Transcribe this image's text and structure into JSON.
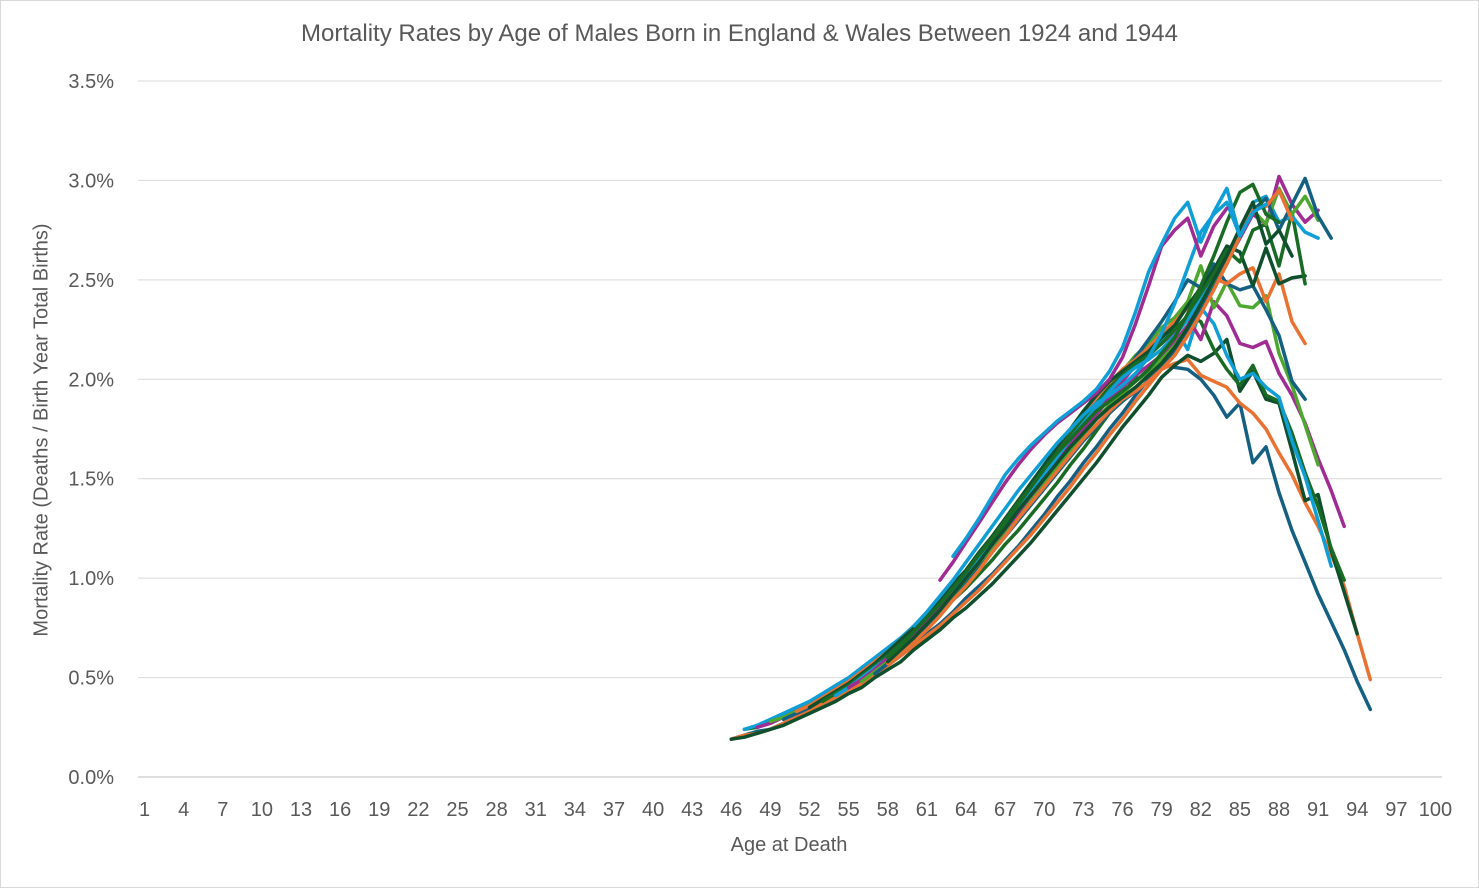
{
  "chart_data": {
    "type": "line",
    "title": "Mortality Rates by Age of Males Born in England & Wales Between 1924 and 1944",
    "xlabel": "Age at Death",
    "ylabel": "Mortality Rate (Deaths / Birth Year Total Births)",
    "x_categories_start": 1,
    "x_categories_end": 100,
    "x_tick_labels": [
      "1",
      "4",
      "7",
      "10",
      "13",
      "16",
      "19",
      "22",
      "25",
      "28",
      "31",
      "34",
      "37",
      "40",
      "43",
      "46",
      "49",
      "52",
      "55",
      "58",
      "61",
      "64",
      "67",
      "70",
      "73",
      "76",
      "79",
      "82",
      "85",
      "88",
      "91",
      "94",
      "97",
      "100"
    ],
    "y_tick_labels": [
      "0.0%",
      "0.5%",
      "1.0%",
      "1.5%",
      "2.0%",
      "2.5%",
      "3.0%",
      "3.5%"
    ],
    "ylim": [
      0,
      0.035
    ],
    "grid": true,
    "legend": "none",
    "series": [
      {
        "start": 46,
        "color": "#156082",
        "values": [
          0.0019,
          0.0021,
          0.0023,
          0.0024,
          0.0027,
          0.003,
          0.0034,
          0.0037,
          0.004,
          0.0044,
          0.0048,
          0.0052,
          0.0058,
          0.0062,
          0.0068,
          0.0072,
          0.0077,
          0.0083,
          0.009,
          0.0096,
          0.0102,
          0.0109,
          0.0116,
          0.0124,
          0.0132,
          0.0141,
          0.0149,
          0.0158,
          0.0166,
          0.0175,
          0.0183,
          0.0192,
          0.02,
          0.0208,
          0.0206,
          0.0205,
          0.02,
          0.0192,
          0.0181,
          0.0188,
          0.0158,
          0.0166,
          0.0143,
          0.0124,
          0.0108,
          0.0092,
          0.0078,
          0.0064,
          0.0048,
          0.0034
        ]
      },
      {
        "start": 46,
        "color": "#E97132",
        "values": [
          0.0019,
          0.0021,
          0.0022,
          0.0024,
          0.0027,
          0.003,
          0.0033,
          0.0037,
          0.004,
          0.0043,
          0.0047,
          0.0051,
          0.0056,
          0.0061,
          0.0066,
          0.0071,
          0.0076,
          0.0082,
          0.0088,
          0.0094,
          0.0101,
          0.0108,
          0.0115,
          0.0122,
          0.013,
          0.0138,
          0.0146,
          0.0155,
          0.0163,
          0.0172,
          0.018,
          0.0189,
          0.0197,
          0.0205,
          0.0208,
          0.021,
          0.0202,
          0.0199,
          0.0196,
          0.0188,
          0.0183,
          0.0175,
          0.0163,
          0.0152,
          0.0138,
          0.0126,
          0.0112,
          0.0096,
          0.0072,
          0.0049
        ]
      },
      {
        "start": 46,
        "color": "#0F4F2E",
        "values": [
          0.0019,
          0.002,
          0.0022,
          0.0024,
          0.0026,
          0.0029,
          0.0032,
          0.0035,
          0.0038,
          0.0042,
          0.0045,
          0.005,
          0.0054,
          0.0058,
          0.0064,
          0.0069,
          0.0074,
          0.008,
          0.0085,
          0.0091,
          0.0097,
          0.0104,
          0.0111,
          0.0118,
          0.0126,
          0.0134,
          0.0142,
          0.015,
          0.0158,
          0.0167,
          0.0176,
          0.0184,
          0.0192,
          0.0201,
          0.0207,
          0.0212,
          0.0209,
          0.0213,
          0.022,
          0.0194,
          0.0204,
          0.019,
          0.0188,
          0.0164,
          0.0139,
          0.0142,
          0.0114,
          0.0093,
          0.0072
        ]
      },
      {
        "start": 47,
        "color": "#196B24",
        "values": [
          0.0024,
          0.0025,
          0.0028,
          0.0031,
          0.0034,
          0.0037,
          0.004,
          0.0044,
          0.0048,
          0.0052,
          0.0056,
          0.0061,
          0.0066,
          0.0071,
          0.0077,
          0.0083,
          0.0089,
          0.0095,
          0.0102,
          0.0109,
          0.0117,
          0.0124,
          0.0132,
          0.014,
          0.0148,
          0.0157,
          0.0165,
          0.0174,
          0.0183,
          0.0192,
          0.0201,
          0.0213,
          0.0218,
          0.0224,
          0.0232,
          0.0229,
          0.0215,
          0.0205,
          0.0197,
          0.0207,
          0.0192,
          0.0189,
          0.0173,
          0.0153,
          0.0136,
          0.0115,
          0.0099
        ]
      },
      {
        "start": 47,
        "color": "#0F9ED5",
        "values": [
          0.0024,
          0.0026,
          0.0029,
          0.0032,
          0.0035,
          0.0038,
          0.0042,
          0.0046,
          0.005,
          0.0055,
          0.006,
          0.0065,
          0.007,
          0.0076,
          0.0082,
          0.0088,
          0.0095,
          0.0101,
          0.0109,
          0.0116,
          0.0124,
          0.0132,
          0.014,
          0.0149,
          0.0157,
          0.0166,
          0.0175,
          0.0184,
          0.0193,
          0.0201,
          0.0209,
          0.0215,
          0.022,
          0.0226,
          0.0215,
          0.0236,
          0.0228,
          0.0212,
          0.02,
          0.0203,
          0.0196,
          0.0191,
          0.0169,
          0.0151,
          0.0129,
          0.0106
        ]
      },
      {
        "start": 48,
        "color": "#A02B93",
        "values": [
          0.0025,
          0.0027,
          0.003,
          0.0033,
          0.0036,
          0.004,
          0.0044,
          0.0048,
          0.0053,
          0.0058,
          0.0063,
          0.0068,
          0.0074,
          0.008,
          0.0086,
          0.0093,
          0.01,
          0.0107,
          0.0114,
          0.0122,
          0.013,
          0.0138,
          0.0147,
          0.0155,
          0.0164,
          0.0173,
          0.0182,
          0.0191,
          0.0199,
          0.0207,
          0.0213,
          0.0218,
          0.0224,
          0.0231,
          0.022,
          0.0239,
          0.0232,
          0.0218,
          0.0216,
          0.0219,
          0.0203,
          0.0192,
          0.0178,
          0.016,
          0.0144,
          0.0126
        ]
      },
      {
        "start": 49,
        "color": "#4EA72E",
        "values": [
          0.0028,
          0.003,
          0.0033,
          0.0036,
          0.004,
          0.0044,
          0.0048,
          0.0053,
          0.0058,
          0.0063,
          0.0069,
          0.0075,
          0.0081,
          0.0087,
          0.0094,
          0.0101,
          0.0109,
          0.0116,
          0.0124,
          0.0133,
          0.0141,
          0.015,
          0.0159,
          0.0168,
          0.0177,
          0.0186,
          0.0195,
          0.0204,
          0.0212,
          0.0218,
          0.0226,
          0.0231,
          0.0239,
          0.0257,
          0.0236,
          0.0249,
          0.0237,
          0.0236,
          0.0242,
          0.0213,
          0.0197,
          0.0177,
          0.0157
        ]
      },
      {
        "start": 50,
        "color": "#156082",
        "values": [
          0.0029,
          0.0032,
          0.0035,
          0.0039,
          0.0043,
          0.0047,
          0.0052,
          0.0057,
          0.0062,
          0.0068,
          0.0074,
          0.008,
          0.0087,
          0.0094,
          0.0101,
          0.0109,
          0.0117,
          0.0125,
          0.0133,
          0.0142,
          0.015,
          0.0159,
          0.0168,
          0.0177,
          0.0186,
          0.0195,
          0.0203,
          0.0211,
          0.022,
          0.0229,
          0.0239,
          0.025,
          0.0246,
          0.0258,
          0.0248,
          0.0245,
          0.0247,
          0.0235,
          0.0222,
          0.0199,
          0.019
        ]
      },
      {
        "start": 51,
        "color": "#E97132",
        "values": [
          0.0033,
          0.0036,
          0.004,
          0.0044,
          0.0048,
          0.0053,
          0.0058,
          0.0063,
          0.0069,
          0.0075,
          0.0082,
          0.0088,
          0.0096,
          0.0103,
          0.0111,
          0.012,
          0.0128,
          0.0137,
          0.0146,
          0.0155,
          0.0164,
          0.0173,
          0.0182,
          0.0191,
          0.0198,
          0.0205,
          0.021,
          0.0216,
          0.0223,
          0.0229,
          0.0236,
          0.0245,
          0.0251,
          0.0248,
          0.0253,
          0.0256,
          0.0239,
          0.0253,
          0.0229,
          0.0218
        ]
      },
      {
        "start": 52,
        "color": "#0F4F2E",
        "values": [
          0.0035,
          0.0039,
          0.0043,
          0.0047,
          0.0052,
          0.0057,
          0.0063,
          0.0069,
          0.0075,
          0.0082,
          0.0089,
          0.0097,
          0.0104,
          0.0113,
          0.0121,
          0.013,
          0.0139,
          0.0148,
          0.0157,
          0.0166,
          0.0175,
          0.0184,
          0.0192,
          0.0199,
          0.0204,
          0.0209,
          0.0214,
          0.0221,
          0.0227,
          0.0237,
          0.0246,
          0.0255,
          0.0267,
          0.0264,
          0.0247,
          0.0266,
          0.0248,
          0.0251,
          0.0252
        ]
      },
      {
        "start": 53,
        "color": "#196B24",
        "values": [
          0.0038,
          0.0042,
          0.0046,
          0.0051,
          0.0056,
          0.0061,
          0.0067,
          0.0073,
          0.008,
          0.0087,
          0.0094,
          0.0102,
          0.011,
          0.0118,
          0.0127,
          0.0135,
          0.0144,
          0.0154,
          0.0163,
          0.0172,
          0.018,
          0.0188,
          0.0196,
          0.0202,
          0.0208,
          0.0212,
          0.0218,
          0.0225,
          0.0232,
          0.0243,
          0.0253,
          0.0265,
          0.0259,
          0.0275,
          0.0278,
          0.0257,
          0.0284,
          0.0248
        ]
      },
      {
        "start": 54,
        "color": "#0F9ED5",
        "values": [
          0.0041,
          0.0045,
          0.005,
          0.0055,
          0.006,
          0.0066,
          0.0072,
          0.0079,
          0.0086,
          0.0093,
          0.0101,
          0.0109,
          0.0117,
          0.0125,
          0.0134,
          0.0143,
          0.0152,
          0.0161,
          0.017,
          0.0178,
          0.0186,
          0.0194,
          0.0201,
          0.0206,
          0.021,
          0.0215,
          0.0222,
          0.023,
          0.024,
          0.025,
          0.026,
          0.0272,
          0.0289,
          0.0292,
          0.0279,
          0.0282,
          0.0274,
          0.0271
        ]
      },
      {
        "start": 55,
        "color": "#A02B93",
        "values": [
          0.0045,
          0.0049,
          0.0054,
          0.006,
          0.0065,
          0.0072,
          0.0078,
          0.0085,
          0.0092,
          0.01,
          0.0108,
          0.0116,
          0.0124,
          0.0133,
          0.0141,
          0.015,
          0.0158,
          0.0167,
          0.0175,
          0.0183,
          0.019,
          0.0196,
          0.0202,
          0.0207,
          0.0212,
          0.0219,
          0.0227,
          0.0237,
          0.0248,
          0.0259,
          0.0271,
          0.0283,
          0.0278,
          0.0302,
          0.0288,
          0.0279,
          0.0285
        ]
      },
      {
        "start": 56,
        "color": "#4EA72E",
        "values": [
          0.0048,
          0.0053,
          0.0058,
          0.0064,
          0.007,
          0.0076,
          0.0083,
          0.009,
          0.0098,
          0.0106,
          0.0114,
          0.0122,
          0.013,
          0.0139,
          0.0147,
          0.0156,
          0.0164,
          0.0172,
          0.018,
          0.0187,
          0.0193,
          0.0199,
          0.0204,
          0.021,
          0.0217,
          0.0226,
          0.0236,
          0.0247,
          0.0258,
          0.0272,
          0.0285,
          0.0278,
          0.0296,
          0.0283,
          0.0292,
          0.028
        ]
      },
      {
        "start": 57,
        "color": "#156082",
        "values": [
          0.0052,
          0.0057,
          0.0062,
          0.0068,
          0.0075,
          0.0082,
          0.0089,
          0.0097,
          0.0105,
          0.0113,
          0.0121,
          0.0129,
          0.0137,
          0.0145,
          0.0153,
          0.0161,
          0.0169,
          0.0176,
          0.0183,
          0.0189,
          0.0194,
          0.0199,
          0.0206,
          0.0214,
          0.0224,
          0.0235,
          0.0246,
          0.0258,
          0.0272,
          0.0285,
          0.0291,
          0.0275,
          0.0288,
          0.0301,
          0.0282,
          0.0271
        ]
      },
      {
        "start": 58,
        "color": "#E97132",
        "values": [
          0.0057,
          0.0062,
          0.0068,
          0.0074,
          0.0081,
          0.0089,
          0.0096,
          0.0104,
          0.0113,
          0.0121,
          0.013,
          0.0138,
          0.0146,
          0.0154,
          0.0162,
          0.017,
          0.0177,
          0.0184,
          0.019,
          0.0194,
          0.0199,
          0.0205,
          0.0212,
          0.0222,
          0.0233,
          0.0245,
          0.0258,
          0.0272,
          0.0285,
          0.0287,
          0.0295,
          0.028
        ]
      },
      {
        "start": 58,
        "color": "#0F4F2E",
        "values": [
          0.0058,
          0.0064,
          0.007,
          0.0077,
          0.0084,
          0.0092,
          0.01,
          0.0108,
          0.0117,
          0.0125,
          0.0134,
          0.0142,
          0.015,
          0.0158,
          0.0166,
          0.0173,
          0.018,
          0.0186,
          0.0191,
          0.0196,
          0.0202,
          0.0208,
          0.0216,
          0.0226,
          0.0238,
          0.025,
          0.0262,
          0.0276,
          0.0289,
          0.0268,
          0.0275,
          0.0262
        ]
      },
      {
        "start": 58,
        "color": "#196B24",
        "values": [
          0.006,
          0.0066,
          0.0073,
          0.008,
          0.0087,
          0.0095,
          0.0103,
          0.0112,
          0.012,
          0.0129,
          0.0138,
          0.0146,
          0.0155,
          0.0163,
          0.017,
          0.0177,
          0.0184,
          0.0189,
          0.0194,
          0.0199,
          0.0205,
          0.0213,
          0.0221,
          0.0233,
          0.0247,
          0.0262,
          0.0279,
          0.0294,
          0.0298,
          0.0283,
          0.0279
        ]
      },
      {
        "start": 60,
        "color": "#0F9ED5",
        "values": [
          0.0076,
          0.0083,
          0.0091,
          0.0099,
          0.0108,
          0.0117,
          0.0126,
          0.0135,
          0.0144,
          0.0152,
          0.016,
          0.0168,
          0.0175,
          0.0182,
          0.0188,
          0.0192,
          0.0197,
          0.0203,
          0.0211,
          0.0223,
          0.0238,
          0.0256,
          0.0274,
          0.0283,
          0.0289,
          0.0272,
          0.0284,
          0.0288
        ]
      },
      {
        "start": 62,
        "color": "#A02B93",
        "values": [
          0.0099,
          0.0108,
          0.0118,
          0.0128,
          0.0138,
          0.0148,
          0.0157,
          0.0165,
          0.0172,
          0.0178,
          0.0183,
          0.0188,
          0.0193,
          0.02,
          0.0211,
          0.0228,
          0.0247,
          0.0267,
          0.0275,
          0.0281,
          0.0262,
          0.0277,
          0.0286
        ]
      },
      {
        "start": 63,
        "color": "#0F9ED5",
        "values": [
          0.0111,
          0.012,
          0.013,
          0.0141,
          0.0152,
          0.016,
          0.0167,
          0.0173,
          0.0179,
          0.0184,
          0.0189,
          0.0195,
          0.0204,
          0.0216,
          0.0234,
          0.0254,
          0.0268,
          0.0281,
          0.0289,
          0.0269,
          0.0284,
          0.0296,
          0.0272
        ]
      }
    ]
  }
}
